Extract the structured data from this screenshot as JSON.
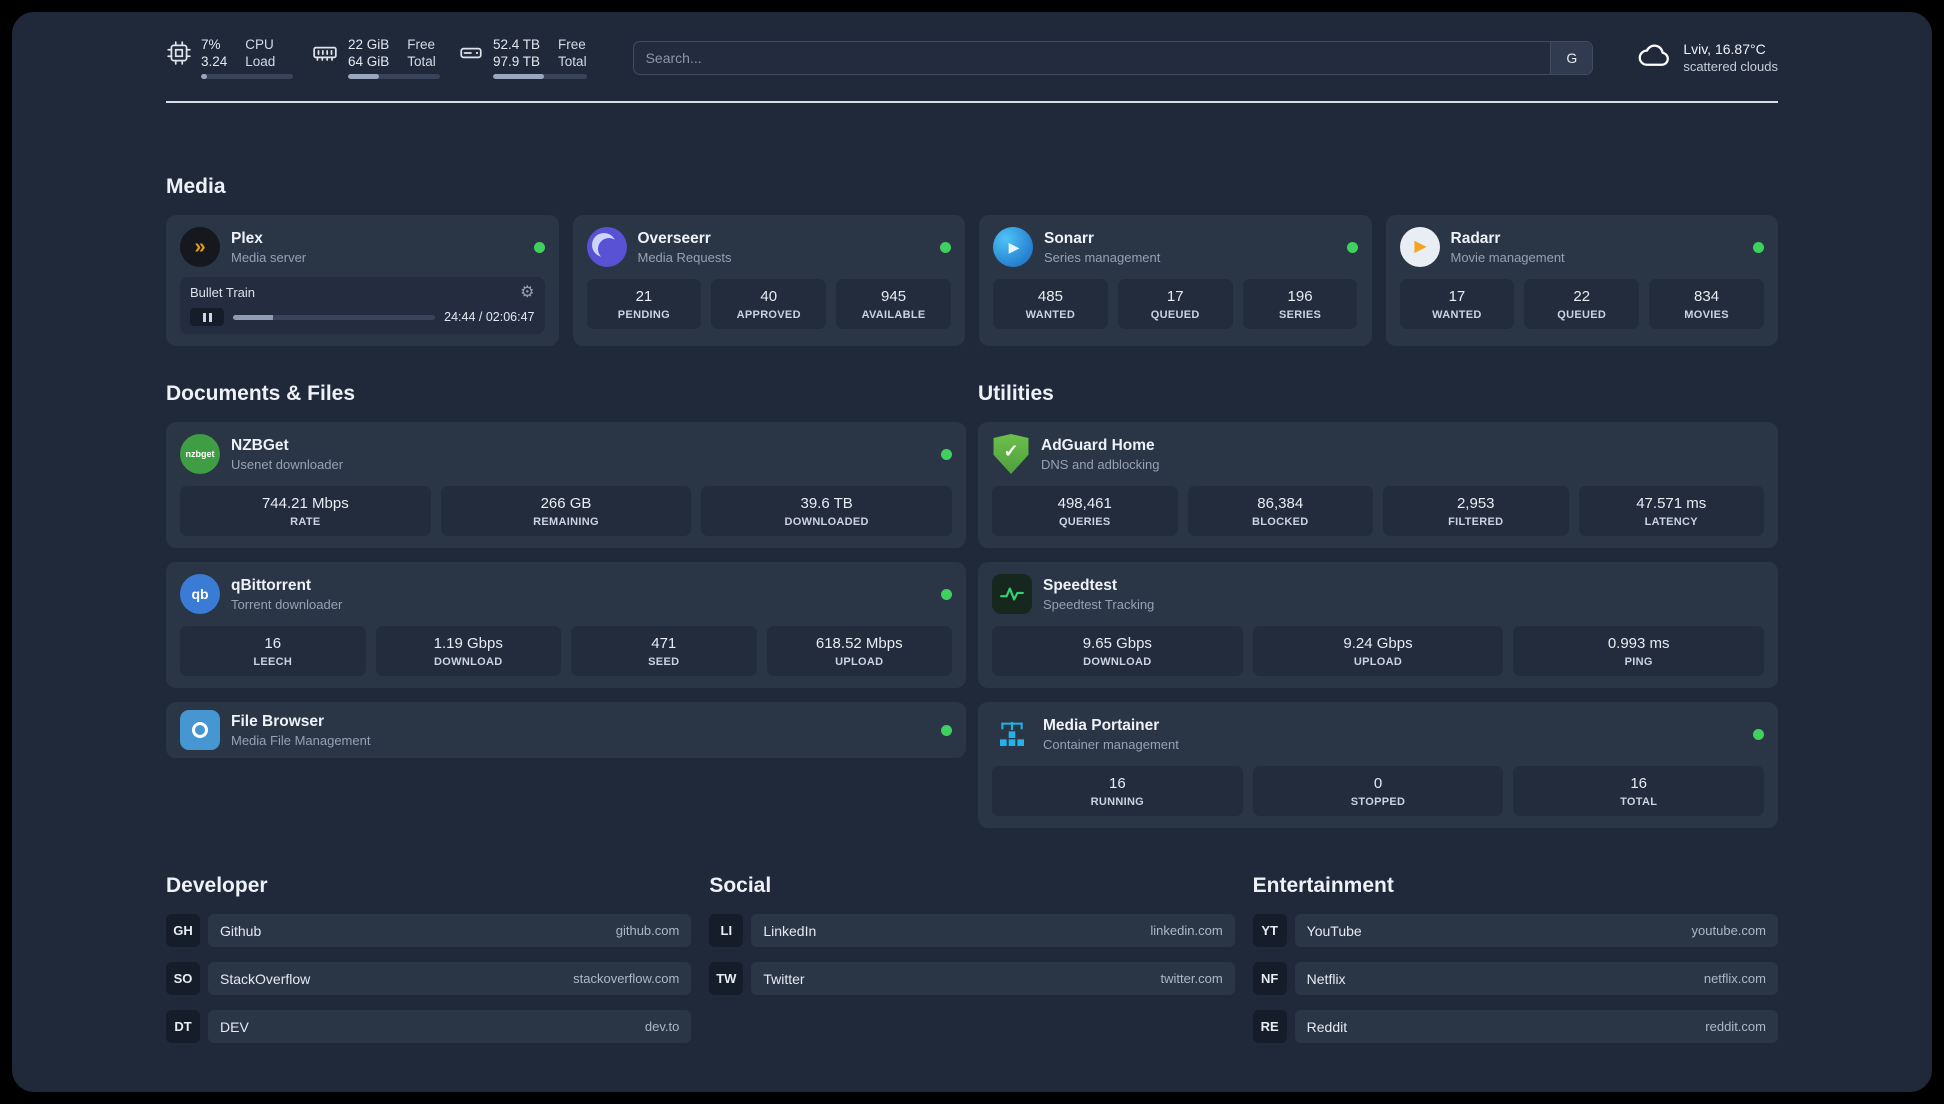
{
  "topbar": {
    "cpu": {
      "value_top": "7%",
      "value_bottom": "3.24",
      "label_top": "CPU",
      "label_bottom": "Load",
      "progress_pct": 7
    },
    "ram": {
      "value_top": "22 GiB",
      "value_bottom": "64 GiB",
      "label_top": "Free",
      "label_bottom": "Total",
      "progress_pct": 34
    },
    "disk": {
      "value_top": "52.4 TB",
      "value_bottom": "97.9 TB",
      "label_top": "Free",
      "label_bottom": "Total",
      "progress_pct": 54
    },
    "search": {
      "placeholder": "Search...",
      "engine_label": "G"
    },
    "weather": {
      "location": "Lviv, 16.87°C",
      "condition": "scattered clouds"
    }
  },
  "icons": {
    "gear": "⚙",
    "plex_chevron": "»",
    "sonarr_play": "▶",
    "radarr_play": "▶",
    "adguard_check": "✓",
    "qbittorrent_label": "qb",
    "nzbget_label": "nzbget"
  },
  "colors": {
    "background": "#1f2939",
    "card": "#2a3546",
    "stat_box": "#222c3c",
    "status_dot": "#3ed15d",
    "plex_accent": "#e5a00d",
    "divider": "#d8dce3"
  },
  "sections": {
    "media": {
      "title": "Media",
      "cards": [
        {
          "name": "Plex",
          "subtitle": "Media server",
          "player": {
            "track": "Bullet Train",
            "time": "24:44 / 02:06:47",
            "progress_pct": 20
          }
        },
        {
          "name": "Overseerr",
          "subtitle": "Media Requests",
          "stats": [
            {
              "value": "21",
              "label": "PENDING"
            },
            {
              "value": "40",
              "label": "APPROVED"
            },
            {
              "value": "945",
              "label": "AVAILABLE"
            }
          ]
        },
        {
          "name": "Sonarr",
          "subtitle": "Series management",
          "stats": [
            {
              "value": "485",
              "label": "WANTED"
            },
            {
              "value": "17",
              "label": "QUEUED"
            },
            {
              "value": "196",
              "label": "SERIES"
            }
          ]
        },
        {
          "name": "Radarr",
          "subtitle": "Movie management",
          "stats": [
            {
              "value": "17",
              "label": "WANTED"
            },
            {
              "value": "22",
              "label": "QUEUED"
            },
            {
              "value": "834",
              "label": "MOVIES"
            }
          ]
        }
      ]
    },
    "documents": {
      "title": "Documents & Files",
      "cards": [
        {
          "name": "NZBGet",
          "subtitle": "Usenet downloader",
          "stats": [
            {
              "value": "744.21 Mbps",
              "label": "RATE"
            },
            {
              "value": "266 GB",
              "label": "REMAINING"
            },
            {
              "value": "39.6 TB",
              "label": "DOWNLOADED"
            }
          ]
        },
        {
          "name": "qBittorrent",
          "subtitle": "Torrent downloader",
          "stats": [
            {
              "value": "16",
              "label": "LEECH"
            },
            {
              "value": "1.19 Gbps",
              "label": "DOWNLOAD"
            },
            {
              "value": "471",
              "label": "SEED"
            },
            {
              "value": "618.52 Mbps",
              "label": "UPLOAD"
            }
          ]
        },
        {
          "name": "File Browser",
          "subtitle": "Media File Management"
        }
      ]
    },
    "utilities": {
      "title": "Utilities",
      "cards": [
        {
          "name": "AdGuard Home",
          "subtitle": "DNS and adblocking",
          "stats": [
            {
              "value": "498,461",
              "label": "QUERIES"
            },
            {
              "value": "86,384",
              "label": "BLOCKED"
            },
            {
              "value": "2,953",
              "label": "FILTERED"
            },
            {
              "value": "47.571 ms",
              "label": "LATENCY"
            }
          ]
        },
        {
          "name": "Speedtest",
          "subtitle": "Speedtest Tracking",
          "stats": [
            {
              "value": "9.65 Gbps",
              "label": "DOWNLOAD"
            },
            {
              "value": "9.24 Gbps",
              "label": "UPLOAD"
            },
            {
              "value": "0.993 ms",
              "label": "PING"
            }
          ]
        },
        {
          "name": "Media Portainer",
          "subtitle": "Container management",
          "stats": [
            {
              "value": "16",
              "label": "RUNNING"
            },
            {
              "value": "0",
              "label": "STOPPED"
            },
            {
              "value": "16",
              "label": "TOTAL"
            }
          ]
        }
      ]
    },
    "bookmarks": [
      {
        "title": "Developer",
        "links": [
          {
            "abbr": "GH",
            "name": "Github",
            "url": "github.com"
          },
          {
            "abbr": "SO",
            "name": "StackOverflow",
            "url": "stackoverflow.com"
          },
          {
            "abbr": "DT",
            "name": "DEV",
            "url": "dev.to"
          }
        ]
      },
      {
        "title": "Social",
        "links": [
          {
            "abbr": "LI",
            "name": "LinkedIn",
            "url": "linkedin.com"
          },
          {
            "abbr": "TW",
            "name": "Twitter",
            "url": "twitter.com"
          }
        ]
      },
      {
        "title": "Entertainment",
        "links": [
          {
            "abbr": "YT",
            "name": "YouTube",
            "url": "youtube.com"
          },
          {
            "abbr": "NF",
            "name": "Netflix",
            "url": "netflix.com"
          },
          {
            "abbr": "RE",
            "name": "Reddit",
            "url": "reddit.com"
          }
        ]
      }
    ]
  }
}
